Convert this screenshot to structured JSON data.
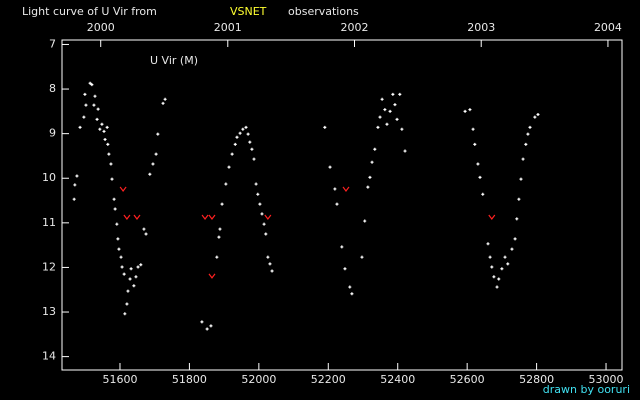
{
  "chart_data": {
    "type": "scatter",
    "title": "Light curve of U Vir from",
    "source": "VSNET",
    "title_end": "observations",
    "label": "U Vir (M)",
    "credit": "drawn by ooruri",
    "xlim": [
      51433,
      53046
    ],
    "xticks": [
      51600,
      51800,
      52000,
      52200,
      52400,
      52600,
      52800,
      53000
    ],
    "x2ticks": [
      {
        "value": 51544.5,
        "label": "2000"
      },
      {
        "value": 51910.5,
        "label": "2001"
      },
      {
        "value": 52275.5,
        "label": "2002"
      },
      {
        "value": 52640.5,
        "label": "2003"
      },
      {
        "value": 53005.5,
        "label": "2004"
      }
    ],
    "ylim": [
      6.9,
      14.3
    ],
    "y_inverted": true,
    "yticks": [
      7,
      8,
      9,
      10,
      11,
      12,
      13,
      14
    ],
    "series": [
      {
        "color": "#ffffff",
        "marker": "+",
        "x": [
          51468,
          51470,
          51476,
          51485,
          51496,
          51499,
          51502,
          51514,
          51519,
          51525,
          51528,
          51534,
          51537,
          51542,
          51548,
          51554,
          51557,
          51563,
          51565,
          51568,
          51574,
          51577,
          51583,
          51586,
          51591,
          51594,
          51597,
          51603,
          51606,
          51612,
          51614,
          51620,
          51623,
          51629,
          51632,
          51640,
          51646,
          51652,
          51660,
          51669,
          51675,
          51686,
          51695,
          51704,
          51709,
          51724,
          51730,
          51836,
          51851,
          51862,
          51879,
          51885,
          51888,
          51894,
          51905,
          51914,
          51923,
          51932,
          51937,
          51946,
          51954,
          51963,
          51969,
          51974,
          51980,
          51986,
          51992,
          51997,
          52003,
          52009,
          52015,
          52020,
          52026,
          52032,
          52038,
          52190,
          52205,
          52219,
          52225,
          52239,
          52248,
          52262,
          52268,
          52297,
          52305,
          52314,
          52320,
          52326,
          52334,
          52343,
          52349,
          52355,
          52363,
          52369,
          52378,
          52386,
          52392,
          52398,
          52406,
          52412,
          52421,
          52594,
          52608,
          52617,
          52622,
          52631,
          52637,
          52645,
          52660,
          52666,
          52671,
          52677,
          52686,
          52691,
          52700,
          52709,
          52717,
          52729,
          52738,
          52743,
          52749,
          52755,
          52761,
          52769,
          52775,
          52781,
          52795,
          52804
        ],
        "values": [
          10.47,
          10.15,
          9.95,
          8.86,
          8.63,
          8.12,
          8.36,
          7.87,
          7.9,
          8.36,
          8.16,
          8.68,
          8.45,
          8.9,
          8.79,
          8.95,
          9.13,
          8.86,
          9.24,
          9.46,
          9.68,
          10.02,
          10.47,
          10.69,
          11.03,
          11.36,
          11.59,
          11.77,
          11.99,
          12.15,
          13.04,
          12.82,
          12.53,
          12.26,
          12.03,
          12.41,
          12.21,
          11.99,
          11.94,
          11.14,
          11.25,
          9.91,
          9.68,
          9.46,
          9.01,
          8.32,
          8.23,
          13.22,
          13.38,
          13.31,
          11.77,
          11.32,
          11.14,
          10.58,
          10.13,
          9.75,
          9.46,
          9.24,
          9.08,
          8.99,
          8.9,
          8.86,
          9.01,
          9.19,
          9.35,
          9.57,
          10.13,
          10.36,
          10.58,
          10.8,
          11.03,
          11.25,
          11.77,
          11.92,
          12.08,
          8.86,
          9.75,
          10.24,
          10.58,
          11.54,
          12.03,
          12.44,
          12.59,
          11.77,
          10.96,
          10.2,
          9.98,
          9.64,
          9.35,
          8.86,
          8.63,
          8.23,
          8.46,
          8.79,
          8.5,
          8.12,
          8.35,
          8.68,
          8.12,
          8.9,
          9.39,
          8.5,
          8.46,
          8.9,
          9.24,
          9.68,
          9.98,
          10.36,
          11.47,
          11.77,
          11.99,
          12.21,
          12.44,
          12.26,
          12.03,
          11.77,
          11.92,
          11.59,
          11.36,
          10.91,
          10.47,
          10.02,
          9.57,
          9.24,
          9.01,
          8.86,
          8.63,
          8.57
        ]
      },
      {
        "color": "#ff2020",
        "marker": "v",
        "x": [
          51609,
          51620,
          51649,
          51845,
          51865,
          51865,
          52026,
          52251,
          52671
        ],
        "values": [
          10.24,
          10.87,
          10.87,
          10.87,
          10.87,
          12.19,
          10.87,
          10.24,
          10.87
        ]
      }
    ]
  }
}
